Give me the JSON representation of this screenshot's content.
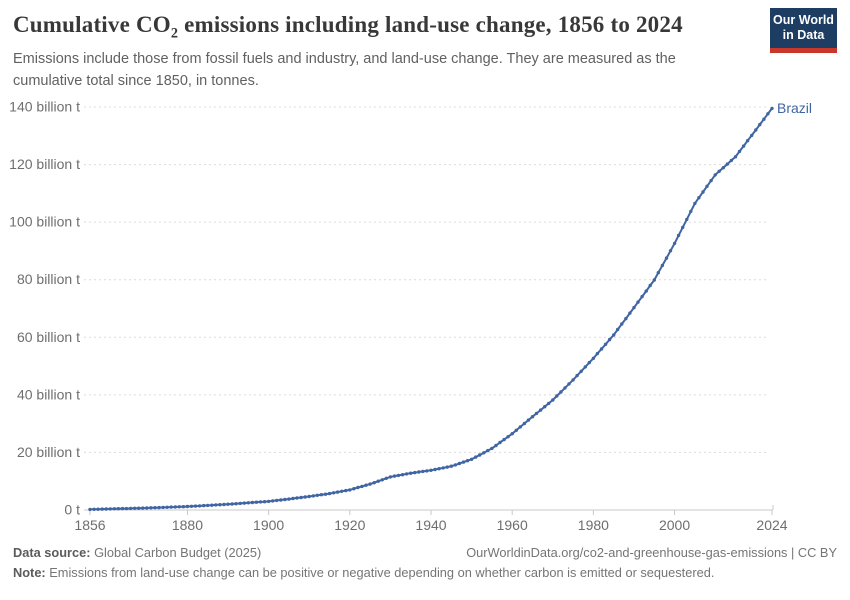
{
  "header": {
    "title_pre": "Cumulative CO",
    "title_sub": "2",
    "title_post": " emissions including land-use change, 1856 to 2024",
    "subtitle": "Emissions include those from fossil fuels and industry, and land-use change. They are measured as the cumulative total since 1850, in tonnes."
  },
  "logo": {
    "line1": "Our World",
    "line2": "in Data",
    "background_color": "#1d3d63",
    "accent_color": "#c9372c"
  },
  "footer": {
    "data_source_label": "Data source:",
    "data_source_value": " Global Carbon Budget (2025)",
    "attribution": "OurWorldinData.org/co2-and-greenhouse-gas-emissions | CC BY",
    "note_label": "Note:",
    "note_value": " Emissions from land-use change can be positive or negative depending on whether carbon is emitted or sequestered."
  },
  "chart_data": {
    "type": "line",
    "title": "Cumulative CO2 emissions including land-use change, 1856 to 2024",
    "entity": "Brazil",
    "unit": "billion tonnes of CO2",
    "x_range": [
      1856,
      2024
    ],
    "ylim": [
      0,
      140
    ],
    "grid": "dashed horizontal gridlines",
    "legend": "end-of-line entity label",
    "marker_style": "small dots every year along line",
    "colors": {
      "line": "#4065a3",
      "gridline": "#dcdcdc",
      "axis": "#c8c8c8",
      "tick_label": "#6e6e6e"
    },
    "y_ticks": [
      {
        "value": 0,
        "label": "0 t"
      },
      {
        "value": 20,
        "label": "20 billion t"
      },
      {
        "value": 40,
        "label": "40 billion t"
      },
      {
        "value": 60,
        "label": "60 billion t"
      },
      {
        "value": 80,
        "label": "80 billion t"
      },
      {
        "value": 100,
        "label": "100 billion t"
      },
      {
        "value": 120,
        "label": "120 billion t"
      },
      {
        "value": 140,
        "label": "140 billion t"
      }
    ],
    "x_ticks": [
      {
        "year": 1856,
        "label": "1856"
      },
      {
        "year": 1880,
        "label": "1880"
      },
      {
        "year": 1900,
        "label": "1900"
      },
      {
        "year": 1920,
        "label": "1920"
      },
      {
        "year": 1940,
        "label": "1940"
      },
      {
        "year": 1960,
        "label": "1960"
      },
      {
        "year": 1980,
        "label": "1980"
      },
      {
        "year": 2000,
        "label": "2000"
      },
      {
        "year": 2024,
        "label": "2024"
      }
    ],
    "series": [
      {
        "name": "Brazil",
        "color": "#4065a3",
        "points": [
          [
            1856,
            0.2
          ],
          [
            1860,
            0.35
          ],
          [
            1865,
            0.5
          ],
          [
            1870,
            0.7
          ],
          [
            1875,
            0.95
          ],
          [
            1880,
            1.2
          ],
          [
            1885,
            1.6
          ],
          [
            1890,
            2.0
          ],
          [
            1895,
            2.5
          ],
          [
            1900,
            3.0
          ],
          [
            1905,
            3.8
          ],
          [
            1910,
            4.7
          ],
          [
            1915,
            5.7
          ],
          [
            1920,
            7.0
          ],
          [
            1925,
            9.0
          ],
          [
            1930,
            11.5
          ],
          [
            1935,
            12.8
          ],
          [
            1940,
            13.8
          ],
          [
            1945,
            15.2
          ],
          [
            1950,
            17.6
          ],
          [
            1955,
            21.4
          ],
          [
            1960,
            26.5
          ],
          [
            1965,
            32.4
          ],
          [
            1970,
            38.2
          ],
          [
            1975,
            45.2
          ],
          [
            1980,
            52.7
          ],
          [
            1985,
            60.8
          ],
          [
            1990,
            70.3
          ],
          [
            1995,
            79.9
          ],
          [
            2000,
            92.6
          ],
          [
            2005,
            106.5
          ],
          [
            2010,
            116.4
          ],
          [
            2015,
            122.7
          ],
          [
            2020,
            132.0
          ],
          [
            2024,
            139.5
          ]
        ]
      }
    ]
  }
}
